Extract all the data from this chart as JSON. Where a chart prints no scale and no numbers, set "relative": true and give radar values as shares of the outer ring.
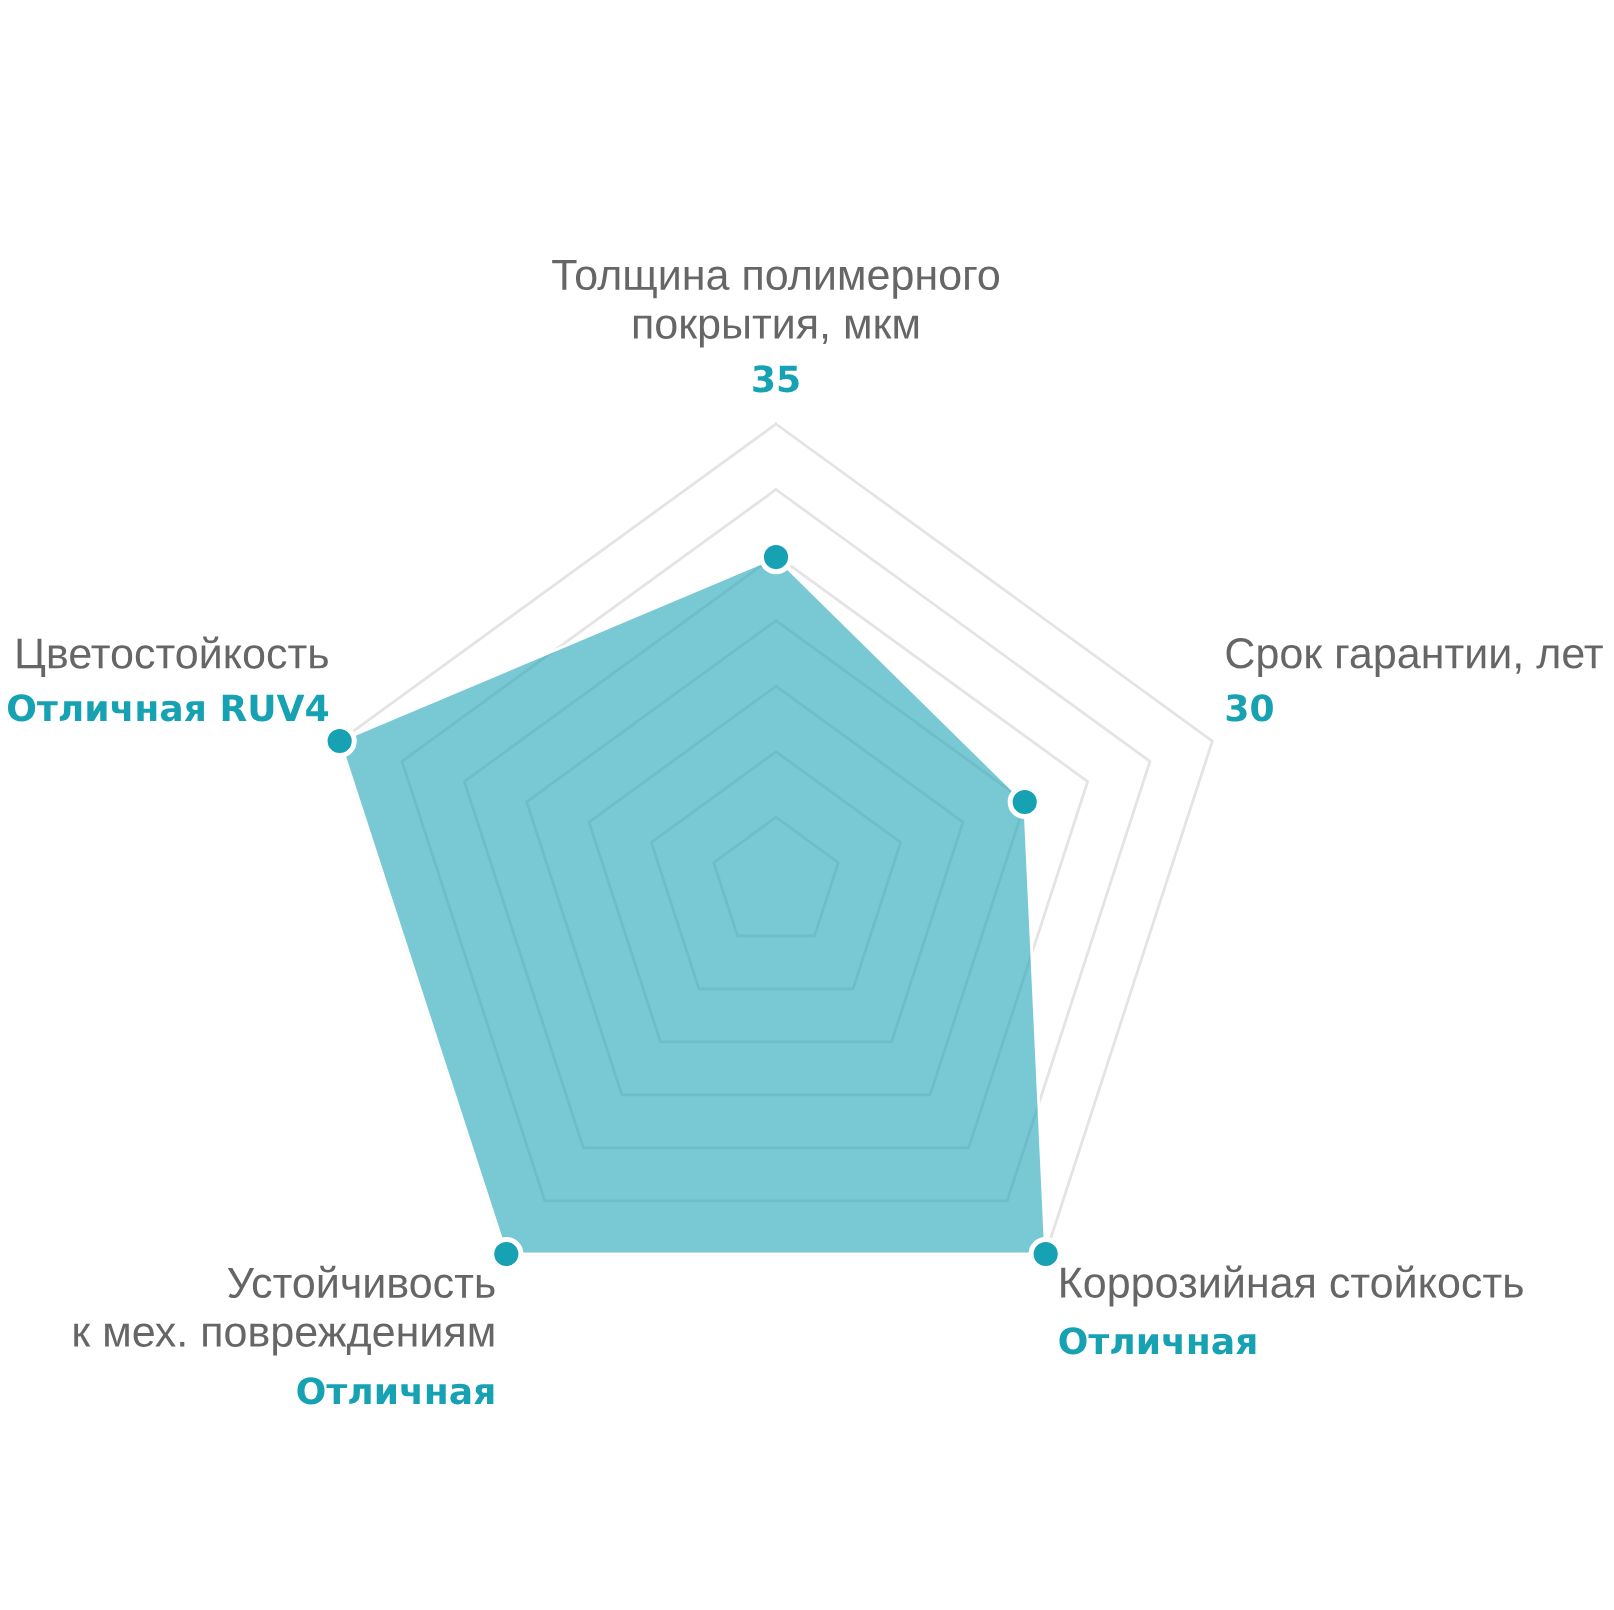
{
  "chart_data": {
    "type": "radar",
    "categories": [
      "Толщина полимерного\nпокрытия, мкм",
      "Срок гарантии, лет",
      "Коррозийная стойкость",
      "Устойчивость\nк мех. повреждениям",
      "Цветостойкость"
    ],
    "relative": true,
    "values": [
      0.71,
      0.57,
      1,
      1,
      1
    ],
    "color": "#17a2b3",
    "grid": true,
    "marker": "circle",
    "annotations": [
      {
        "text": "35",
        "x": "Толщина полимерного\nпокрытия, мкм"
      },
      {
        "text": "30",
        "x": "Срок гарантии, лет"
      },
      {
        "text": "Отличная",
        "x": "Коррозийная стойкость"
      },
      {
        "text": "Отличная",
        "x": "Устойчивость\nк мех. повреждениям"
      },
      {
        "text": "Отличная RUV4",
        "x": "Цветостойкость"
      }
    ]
  }
}
